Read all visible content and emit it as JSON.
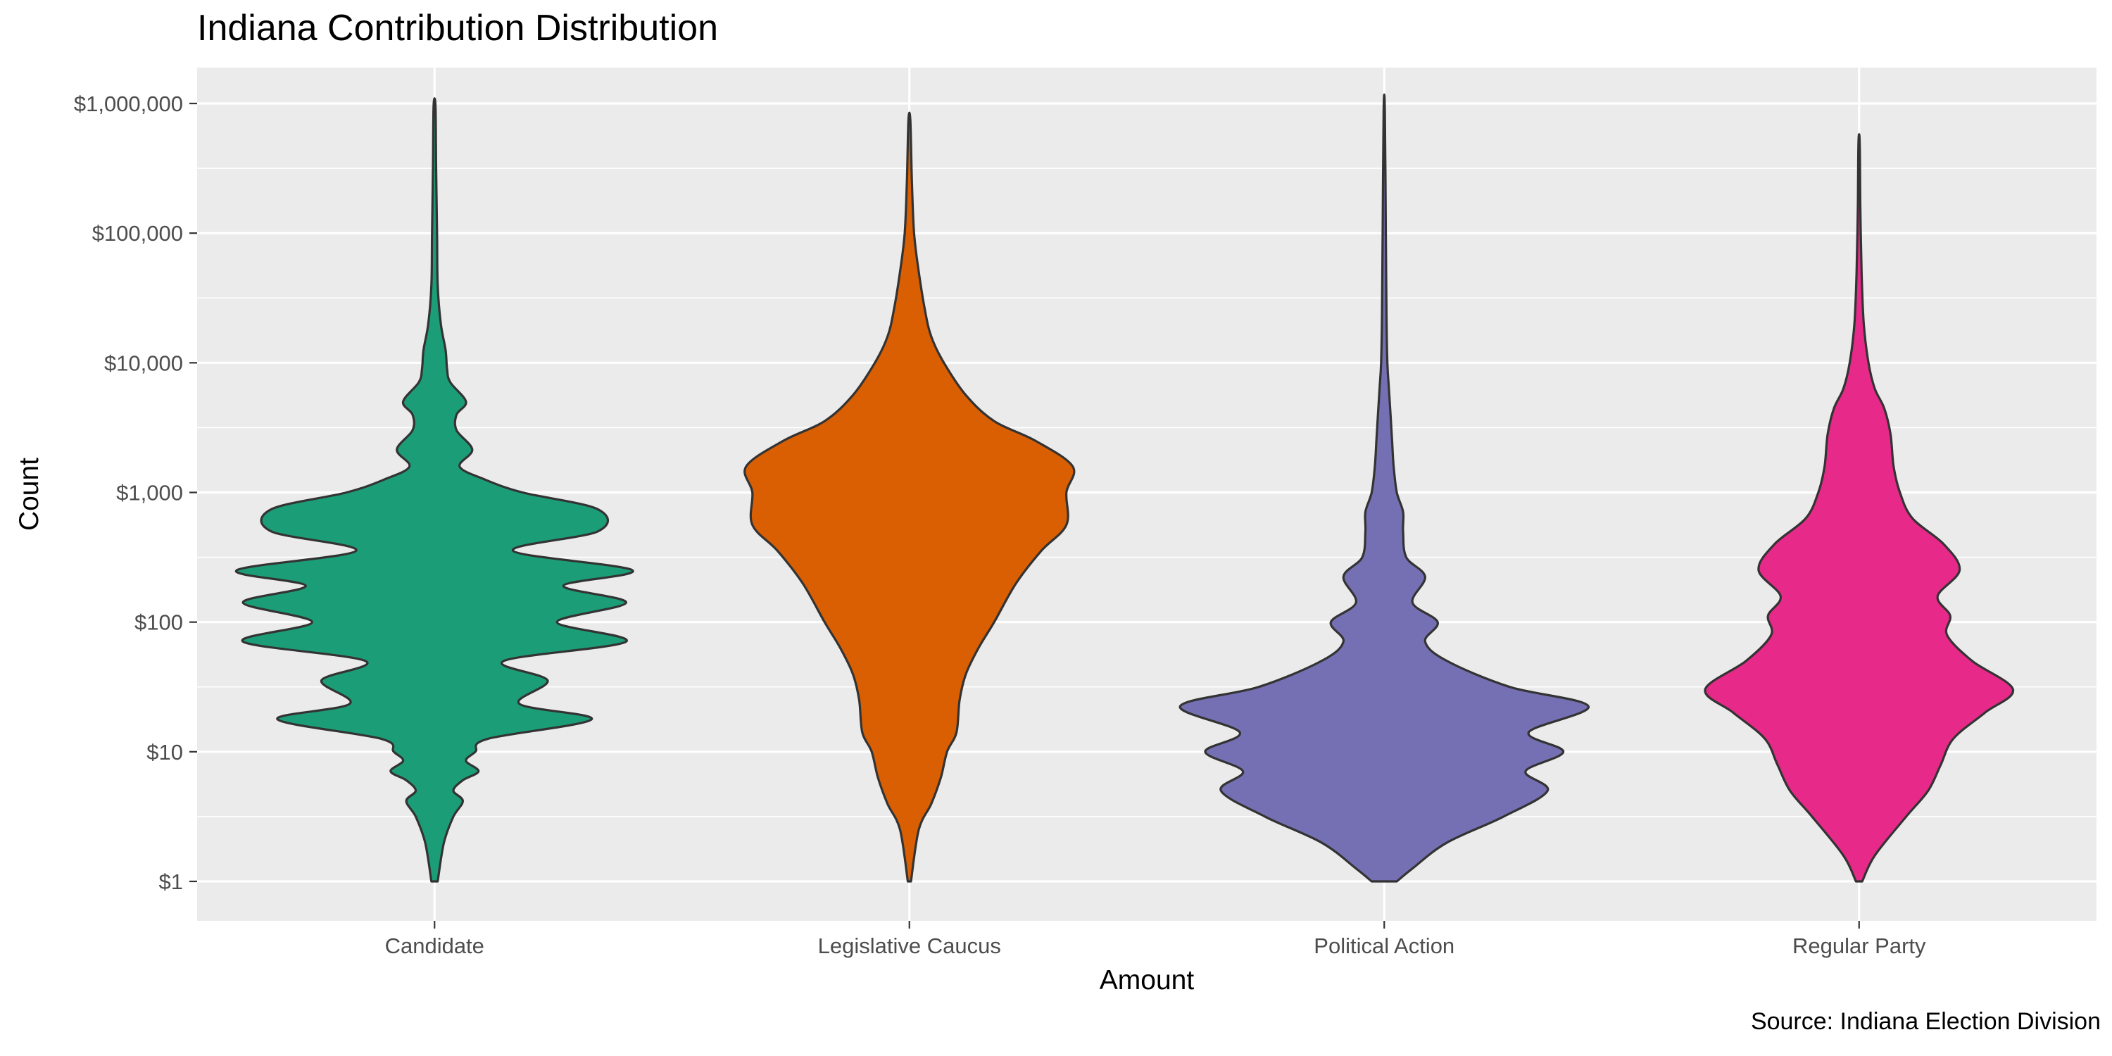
{
  "chart_data": {
    "type": "violin",
    "title": "Indiana Contribution Distribution",
    "caption": "Source: Indiana Election Division",
    "xlabel": "Amount",
    "ylabel": "Count",
    "y_scale": "log10",
    "ylim": [
      1,
      1000000
    ],
    "y_ticks": [
      1,
      10,
      100,
      1000,
      10000,
      100000,
      1000000
    ],
    "y_tick_labels": [
      "$1",
      "$10",
      "$100",
      "$1,000",
      "$10,000",
      "$100,000",
      "$1,000,000"
    ],
    "categories": [
      "Candidate",
      "Legislative Caucus",
      "Political Action",
      "Regular Party"
    ],
    "grid": true,
    "legend": "none",
    "colors": [
      "#1B9E77",
      "#D95F02",
      "#7570B3",
      "#E7298A"
    ],
    "background": "#EBEBEB",
    "gridline_color": "#FFFFFF",
    "outline_color": "#333333",
    "series": [
      {
        "category": "Candidate",
        "min": 1,
        "max": 950000,
        "density": [
          [
            0.0,
            0.01
          ],
          [
            0.3,
            0.03
          ],
          [
            0.5,
            0.06
          ],
          [
            0.62,
            0.09
          ],
          [
            0.7,
            0.06
          ],
          [
            0.78,
            0.09
          ],
          [
            0.85,
            0.14
          ],
          [
            0.93,
            0.1
          ],
          [
            1.0,
            0.13
          ],
          [
            1.1,
            0.17
          ],
          [
            1.25,
            0.5
          ],
          [
            1.37,
            0.27
          ],
          [
            1.55,
            0.36
          ],
          [
            1.7,
            0.22
          ],
          [
            1.85,
            0.61
          ],
          [
            2.0,
            0.39
          ],
          [
            2.15,
            0.61
          ],
          [
            2.28,
            0.41
          ],
          [
            2.4,
            0.63
          ],
          [
            2.55,
            0.25
          ],
          [
            2.7,
            0.52
          ],
          [
            2.87,
            0.52
          ],
          [
            3.0,
            0.28
          ],
          [
            3.1,
            0.16
          ],
          [
            3.2,
            0.08
          ],
          [
            3.33,
            0.12
          ],
          [
            3.48,
            0.07
          ],
          [
            3.6,
            0.07
          ],
          [
            3.7,
            0.1
          ],
          [
            3.85,
            0.05
          ],
          [
            3.95,
            0.04
          ],
          [
            4.1,
            0.035
          ],
          [
            4.3,
            0.02
          ],
          [
            4.6,
            0.01
          ],
          [
            5.0,
            0.008
          ],
          [
            5.5,
            0.005
          ],
          [
            5.98,
            0.003
          ]
        ]
      },
      {
        "category": "Legislative Caucus",
        "min": 1,
        "max": 740000,
        "density": [
          [
            0.0,
            0.005
          ],
          [
            0.4,
            0.03
          ],
          [
            0.6,
            0.07
          ],
          [
            0.8,
            0.1
          ],
          [
            1.0,
            0.12
          ],
          [
            1.15,
            0.15
          ],
          [
            1.4,
            0.16
          ],
          [
            1.6,
            0.18
          ],
          [
            1.8,
            0.22
          ],
          [
            2.0,
            0.27
          ],
          [
            2.3,
            0.34
          ],
          [
            2.55,
            0.42
          ],
          [
            2.75,
            0.5
          ],
          [
            3.0,
            0.5
          ],
          [
            3.2,
            0.52
          ],
          [
            3.4,
            0.4
          ],
          [
            3.55,
            0.27
          ],
          [
            3.75,
            0.18
          ],
          [
            4.0,
            0.11
          ],
          [
            4.2,
            0.07
          ],
          [
            4.4,
            0.05
          ],
          [
            4.7,
            0.03
          ],
          [
            5.0,
            0.015
          ],
          [
            5.4,
            0.008
          ],
          [
            5.87,
            0.003
          ]
        ]
      },
      {
        "category": "Political Action",
        "min": 1,
        "max": 900000,
        "density": [
          [
            0.0,
            0.04
          ],
          [
            0.1,
            0.09
          ],
          [
            0.3,
            0.2
          ],
          [
            0.5,
            0.38
          ],
          [
            0.7,
            0.52
          ],
          [
            0.85,
            0.45
          ],
          [
            1.0,
            0.57
          ],
          [
            1.15,
            0.46
          ],
          [
            1.35,
            0.65
          ],
          [
            1.5,
            0.4
          ],
          [
            1.7,
            0.2
          ],
          [
            1.85,
            0.13
          ],
          [
            2.0,
            0.17
          ],
          [
            2.15,
            0.09
          ],
          [
            2.35,
            0.13
          ],
          [
            2.5,
            0.07
          ],
          [
            2.7,
            0.06
          ],
          [
            2.85,
            0.06
          ],
          [
            3.0,
            0.04
          ],
          [
            3.2,
            0.03
          ],
          [
            3.4,
            0.025
          ],
          [
            3.6,
            0.02
          ],
          [
            3.8,
            0.015
          ],
          [
            4.0,
            0.01
          ],
          [
            4.4,
            0.007
          ],
          [
            5.0,
            0.005
          ],
          [
            5.95,
            0.002
          ]
        ]
      },
      {
        "category": "Regular Party",
        "min": 1,
        "max": 500000,
        "density": [
          [
            0.0,
            0.01
          ],
          [
            0.2,
            0.05
          ],
          [
            0.5,
            0.15
          ],
          [
            0.7,
            0.22
          ],
          [
            0.9,
            0.26
          ],
          [
            1.1,
            0.3
          ],
          [
            1.3,
            0.4
          ],
          [
            1.48,
            0.49
          ],
          [
            1.7,
            0.36
          ],
          [
            1.9,
            0.28
          ],
          [
            2.05,
            0.29
          ],
          [
            2.2,
            0.25
          ],
          [
            2.4,
            0.32
          ],
          [
            2.6,
            0.27
          ],
          [
            2.8,
            0.17
          ],
          [
            3.0,
            0.13
          ],
          [
            3.2,
            0.11
          ],
          [
            3.45,
            0.1
          ],
          [
            3.65,
            0.08
          ],
          [
            3.8,
            0.05
          ],
          [
            4.0,
            0.03
          ],
          [
            4.3,
            0.015
          ],
          [
            4.7,
            0.008
          ],
          [
            5.2,
            0.004
          ],
          [
            5.7,
            0.002
          ]
        ]
      }
    ]
  }
}
